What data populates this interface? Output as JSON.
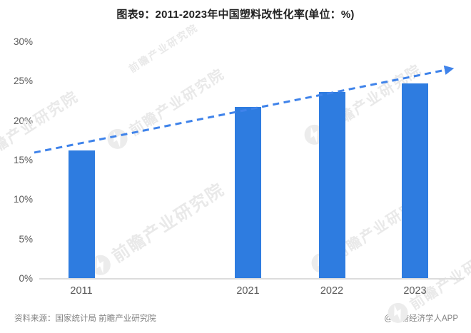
{
  "title": "图表9：2011-2023年中国塑料改性化率(单位：%)",
  "chart_data": {
    "type": "bar",
    "title": "图表9：2011-2023年中国塑料改性化率(单位：%)",
    "categories": [
      "2011",
      "2021",
      "2022",
      "2023"
    ],
    "values": [
      16.3,
      21.8,
      23.7,
      24.8
    ],
    "unit": "%",
    "xlabel": "",
    "ylabel": "",
    "ylim": [
      0,
      30
    ],
    "ytick_values": [
      0,
      5,
      10,
      15,
      20,
      25,
      30
    ],
    "ytick_labels": [
      "0%",
      "5%",
      "10%",
      "15%",
      "20%",
      "25%",
      "30%"
    ],
    "grid": false,
    "legend": "none",
    "trendline": {
      "style": "dashed-arrow",
      "start_value": 16.0,
      "end_value": 26.5,
      "note": "rising dashed arrow from ~16% (2011) to ~26.5% beyond 2023"
    }
  },
  "colors": {
    "bar": "#2e7ce0",
    "trend": "#3f83ea",
    "axis_line": "#dcdcdc",
    "tick_text": "#595959",
    "title_text": "#222222",
    "footer_text": "#828282",
    "watermark": "#e9e9e9"
  },
  "footer": {
    "source": "资料来源：国家统计局 前瞻产业研究院",
    "credit": "@前瞻经济学人APP"
  },
  "watermark": {
    "text": "前瞻产业研究院",
    "logo": "qianzhan-bolt-logo"
  }
}
